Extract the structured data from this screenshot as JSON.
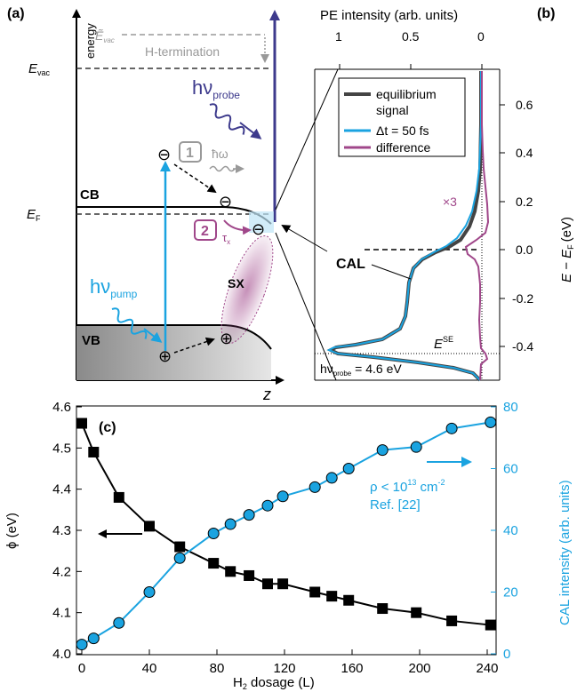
{
  "panel_a": {
    "label": "(a)",
    "energy_axis_label": "energy",
    "z_axis_label": "z",
    "evac_label": "E",
    "evac_sub": "vac",
    "evac_tilde_label": "Ẽ",
    "evac_tilde_sub": "vac",
    "h_termination_label": "H-termination",
    "hv_probe_label": "hν",
    "hv_probe_sub": "probe",
    "hv_pump_label": "hν",
    "hv_pump_sub": "pump",
    "hbar_omega_label": "ħω",
    "cb_label": "CB",
    "vb_label": "VB",
    "ef_label": "E",
    "ef_sub": "F",
    "step1_label": "1",
    "step2_label": "2",
    "tau_label": "τ",
    "tau_sub": "x",
    "sx_label": "SX",
    "electron_symbol": "⊖",
    "hole_symbol": "⊕",
    "colors": {
      "probe": "#3d3a8c",
      "pump": "#1aa3e0",
      "step2": "#a0478a",
      "grey": "#999999"
    }
  },
  "panel_b": {
    "label": "(b)",
    "top_axis_title": "PE intensity (arb. units)",
    "right_axis_title": "E − E",
    "right_axis_sub": "F",
    "right_axis_unit": "(eV)",
    "cal_label": "CAL",
    "x3_label": "×3",
    "ese_label": "E",
    "ese_sup": "SE",
    "probe_energy_label": "hν",
    "probe_energy_sub": "probe",
    "probe_energy_value": " = 4.6 eV",
    "legend": [
      {
        "label": "equilibrium",
        "label2": "signal",
        "color": "#444444"
      },
      {
        "label": "Δt = 50 fs",
        "label2": "",
        "color": "#1aa3e0"
      },
      {
        "label": "difference",
        "label2": "",
        "color": "#a0478a"
      }
    ],
    "x_ticks": [
      "1",
      "0.5",
      "0"
    ],
    "y_ticks": [
      "0.6",
      "0.4",
      "0.2",
      "0.0",
      "-0.2",
      "-0.4"
    ]
  },
  "chart_data": [
    {
      "type": "line",
      "panel": "(c)",
      "xlabel": "H₂ dosage (L)",
      "ylabel_left": "ϕ (eV)",
      "ylabel_right": "CAL intensity (arb. units)",
      "xlim": [
        0,
        245
      ],
      "ylim_left": [
        4.0,
        4.6
      ],
      "ylim_right": [
        0,
        80
      ],
      "x_ticks": [
        0,
        40,
        80,
        120,
        160,
        200,
        240
      ],
      "y_ticks_left": [
        4.0,
        4.1,
        4.2,
        4.3,
        4.4,
        4.5,
        4.6
      ],
      "y_ticks_right": [
        0,
        20,
        40,
        60,
        80
      ],
      "annotation_line1": "ρ < 10",
      "annotation_sup": "13",
      "annotation_unit": " cm",
      "annotation_sup2": "-2",
      "annotation_line2": "Ref. [22]",
      "series": [
        {
          "axis": "left",
          "color": "#000000",
          "marker": "square",
          "x": [
            0,
            7,
            22,
            40,
            58,
            78,
            88,
            99,
            110,
            119,
            138,
            148,
            158,
            178,
            198,
            219,
            242
          ],
          "y": [
            4.56,
            4.49,
            4.38,
            4.31,
            4.26,
            4.22,
            4.2,
            4.19,
            4.17,
            4.17,
            4.15,
            4.14,
            4.13,
            4.11,
            4.1,
            4.08,
            4.07
          ]
        },
        {
          "axis": "right",
          "color": "#1aa3e0",
          "marker": "circle",
          "x": [
            0,
            7,
            22,
            40,
            58,
            78,
            88,
            99,
            110,
            119,
            138,
            148,
            158,
            178,
            198,
            219,
            242
          ],
          "y": [
            3,
            5,
            10,
            20,
            31,
            39,
            42,
            45,
            48,
            51,
            54,
            57,
            60,
            66,
            67,
            73,
            75
          ]
        }
      ]
    }
  ]
}
